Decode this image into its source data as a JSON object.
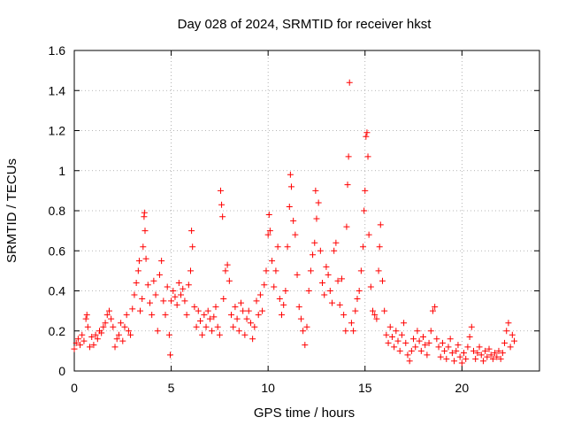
{
  "chart_data": {
    "type": "scatter",
    "title": "Day 028 of 2024, SRMTID for receiver hkst",
    "xlabel": "GPS time / hours",
    "ylabel": "SRMTID / TECUs",
    "xlim": [
      0,
      24
    ],
    "ylim": [
      0,
      1.6
    ],
    "x_ticks": [
      0,
      5,
      10,
      15,
      20
    ],
    "x_tick_labels": [
      "0",
      "5",
      "10",
      "15",
      "20"
    ],
    "y_ticks": [
      0,
      0.2,
      0.4,
      0.6,
      0.8,
      1,
      1.2,
      1.4,
      1.6
    ],
    "y_tick_labels": [
      "0",
      "0.2",
      "0.4",
      "0.6",
      "0.8",
      "1",
      "1.2",
      "1.4",
      "1.6"
    ],
    "grid": true,
    "marker": "plus",
    "color": "#ff0000",
    "series": [
      {
        "name": "SRMTID",
        "points": [
          [
            0.0,
            0.11
          ],
          [
            0.1,
            0.14
          ],
          [
            0.2,
            0.16
          ],
          [
            0.3,
            0.13
          ],
          [
            0.4,
            0.18
          ],
          [
            0.5,
            0.15
          ],
          [
            0.6,
            0.26
          ],
          [
            0.65,
            0.28
          ],
          [
            0.7,
            0.22
          ],
          [
            0.8,
            0.12
          ],
          [
            0.9,
            0.17
          ],
          [
            1.0,
            0.13
          ],
          [
            1.1,
            0.18
          ],
          [
            1.2,
            0.16
          ],
          [
            1.3,
            0.2
          ],
          [
            1.4,
            0.19
          ],
          [
            1.5,
            0.22
          ],
          [
            1.6,
            0.24
          ],
          [
            1.7,
            0.28
          ],
          [
            1.8,
            0.3
          ],
          [
            1.9,
            0.26
          ],
          [
            2.0,
            0.22
          ],
          [
            2.1,
            0.12
          ],
          [
            2.2,
            0.16
          ],
          [
            2.3,
            0.18
          ],
          [
            2.4,
            0.24
          ],
          [
            2.5,
            0.15
          ],
          [
            2.6,
            0.22
          ],
          [
            2.7,
            0.28
          ],
          [
            2.8,
            0.2
          ],
          [
            2.9,
            0.18
          ],
          [
            3.0,
            0.31
          ],
          [
            3.1,
            0.38
          ],
          [
            3.2,
            0.44
          ],
          [
            3.3,
            0.5
          ],
          [
            3.35,
            0.55
          ],
          [
            3.4,
            0.3
          ],
          [
            3.5,
            0.36
          ],
          [
            3.55,
            0.62
          ],
          [
            3.6,
            0.77
          ],
          [
            3.62,
            0.79
          ],
          [
            3.65,
            0.7
          ],
          [
            3.7,
            0.56
          ],
          [
            3.8,
            0.43
          ],
          [
            3.9,
            0.34
          ],
          [
            4.0,
            0.28
          ],
          [
            4.1,
            0.45
          ],
          [
            4.2,
            0.38
          ],
          [
            4.3,
            0.2
          ],
          [
            4.4,
            0.48
          ],
          [
            4.5,
            0.55
          ],
          [
            4.6,
            0.35
          ],
          [
            4.7,
            0.28
          ],
          [
            4.8,
            0.42
          ],
          [
            4.9,
            0.18
          ],
          [
            4.95,
            0.08
          ],
          [
            5.0,
            0.35
          ],
          [
            5.1,
            0.4
          ],
          [
            5.2,
            0.37
          ],
          [
            5.3,
            0.33
          ],
          [
            5.4,
            0.44
          ],
          [
            5.5,
            0.38
          ],
          [
            5.6,
            0.41
          ],
          [
            5.7,
            0.35
          ],
          [
            5.8,
            0.28
          ],
          [
            5.9,
            0.43
          ],
          [
            6.0,
            0.5
          ],
          [
            6.05,
            0.7
          ],
          [
            6.1,
            0.62
          ],
          [
            6.2,
            0.32
          ],
          [
            6.3,
            0.22
          ],
          [
            6.4,
            0.3
          ],
          [
            6.5,
            0.25
          ],
          [
            6.6,
            0.18
          ],
          [
            6.7,
            0.28
          ],
          [
            6.8,
            0.22
          ],
          [
            6.9,
            0.3
          ],
          [
            7.0,
            0.26
          ],
          [
            7.1,
            0.2
          ],
          [
            7.2,
            0.27
          ],
          [
            7.3,
            0.32
          ],
          [
            7.4,
            0.22
          ],
          [
            7.5,
            0.18
          ],
          [
            7.55,
            0.9
          ],
          [
            7.6,
            0.83
          ],
          [
            7.65,
            0.77
          ],
          [
            7.7,
            0.36
          ],
          [
            7.8,
            0.5
          ],
          [
            7.9,
            0.53
          ],
          [
            8.0,
            0.45
          ],
          [
            8.1,
            0.28
          ],
          [
            8.2,
            0.22
          ],
          [
            8.3,
            0.32
          ],
          [
            8.4,
            0.26
          ],
          [
            8.5,
            0.2
          ],
          [
            8.6,
            0.34
          ],
          [
            8.7,
            0.3
          ],
          [
            8.8,
            0.18
          ],
          [
            8.9,
            0.26
          ],
          [
            9.0,
            0.3
          ],
          [
            9.1,
            0.24
          ],
          [
            9.2,
            0.16
          ],
          [
            9.3,
            0.22
          ],
          [
            9.4,
            0.35
          ],
          [
            9.5,
            0.28
          ],
          [
            9.6,
            0.38
          ],
          [
            9.7,
            0.3
          ],
          [
            9.8,
            0.43
          ],
          [
            9.9,
            0.5
          ],
          [
            10.0,
            0.68
          ],
          [
            10.05,
            0.78
          ],
          [
            10.1,
            0.7
          ],
          [
            10.2,
            0.55
          ],
          [
            10.3,
            0.42
          ],
          [
            10.4,
            0.5
          ],
          [
            10.5,
            0.62
          ],
          [
            10.6,
            0.36
          ],
          [
            10.7,
            0.28
          ],
          [
            10.8,
            0.33
          ],
          [
            10.9,
            0.4
          ],
          [
            11.0,
            0.62
          ],
          [
            11.1,
            0.82
          ],
          [
            11.15,
            0.98
          ],
          [
            11.2,
            0.92
          ],
          [
            11.3,
            0.75
          ],
          [
            11.4,
            0.68
          ],
          [
            11.5,
            0.48
          ],
          [
            11.6,
            0.32
          ],
          [
            11.7,
            0.26
          ],
          [
            11.8,
            0.2
          ],
          [
            11.9,
            0.13
          ],
          [
            12.0,
            0.22
          ],
          [
            12.1,
            0.4
          ],
          [
            12.2,
            0.5
          ],
          [
            12.3,
            0.58
          ],
          [
            12.4,
            0.64
          ],
          [
            12.45,
            0.9
          ],
          [
            12.5,
            0.76
          ],
          [
            12.6,
            0.84
          ],
          [
            12.7,
            0.6
          ],
          [
            12.8,
            0.44
          ],
          [
            12.9,
            0.38
          ],
          [
            13.0,
            0.52
          ],
          [
            13.1,
            0.48
          ],
          [
            13.2,
            0.4
          ],
          [
            13.3,
            0.34
          ],
          [
            13.4,
            0.6
          ],
          [
            13.5,
            0.64
          ],
          [
            13.6,
            0.45
          ],
          [
            13.7,
            0.33
          ],
          [
            13.8,
            0.46
          ],
          [
            13.9,
            0.28
          ],
          [
            14.0,
            0.2
          ],
          [
            14.05,
            0.72
          ],
          [
            14.1,
            0.93
          ],
          [
            14.15,
            1.07
          ],
          [
            14.2,
            1.44
          ],
          [
            14.3,
            0.24
          ],
          [
            14.4,
            0.2
          ],
          [
            14.5,
            0.3
          ],
          [
            14.6,
            0.36
          ],
          [
            14.7,
            0.4
          ],
          [
            14.8,
            0.5
          ],
          [
            14.9,
            0.62
          ],
          [
            14.95,
            0.8
          ],
          [
            15.0,
            0.9
          ],
          [
            15.05,
            1.17
          ],
          [
            15.1,
            1.19
          ],
          [
            15.15,
            1.07
          ],
          [
            15.2,
            0.68
          ],
          [
            15.3,
            0.42
          ],
          [
            15.4,
            0.3
          ],
          [
            15.5,
            0.28
          ],
          [
            15.6,
            0.26
          ],
          [
            15.7,
            0.5
          ],
          [
            15.75,
            0.62
          ],
          [
            15.8,
            0.73
          ],
          [
            15.9,
            0.45
          ],
          [
            16.0,
            0.3
          ],
          [
            16.1,
            0.18
          ],
          [
            16.2,
            0.14
          ],
          [
            16.3,
            0.22
          ],
          [
            16.4,
            0.17
          ],
          [
            16.5,
            0.12
          ],
          [
            16.6,
            0.2
          ],
          [
            16.7,
            0.15
          ],
          [
            16.8,
            0.1
          ],
          [
            16.9,
            0.18
          ],
          [
            17.0,
            0.24
          ],
          [
            17.1,
            0.14
          ],
          [
            17.2,
            0.08
          ],
          [
            17.3,
            0.05
          ],
          [
            17.4,
            0.1
          ],
          [
            17.5,
            0.16
          ],
          [
            17.6,
            0.12
          ],
          [
            17.7,
            0.2
          ],
          [
            17.8,
            0.15
          ],
          [
            17.9,
            0.1
          ],
          [
            18.0,
            0.17
          ],
          [
            18.1,
            0.13
          ],
          [
            18.2,
            0.08
          ],
          [
            18.3,
            0.14
          ],
          [
            18.4,
            0.2
          ],
          [
            18.5,
            0.3
          ],
          [
            18.6,
            0.32
          ],
          [
            18.7,
            0.16
          ],
          [
            18.8,
            0.12
          ],
          [
            18.9,
            0.07
          ],
          [
            19.0,
            0.14
          ],
          [
            19.1,
            0.1
          ],
          [
            19.2,
            0.06
          ],
          [
            19.3,
            0.12
          ],
          [
            19.4,
            0.16
          ],
          [
            19.5,
            0.09
          ],
          [
            19.6,
            0.05
          ],
          [
            19.7,
            0.1
          ],
          [
            19.8,
            0.13
          ],
          [
            19.9,
            0.07
          ],
          [
            20.0,
            0.04
          ],
          [
            20.1,
            0.09
          ],
          [
            20.2,
            0.06
          ],
          [
            20.3,
            0.12
          ],
          [
            20.4,
            0.17
          ],
          [
            20.5,
            0.22
          ],
          [
            20.6,
            0.1
          ],
          [
            20.7,
            0.06
          ],
          [
            20.8,
            0.09
          ],
          [
            20.9,
            0.12
          ],
          [
            21.0,
            0.08
          ],
          [
            21.1,
            0.05
          ],
          [
            21.2,
            0.1
          ],
          [
            21.3,
            0.07
          ],
          [
            21.4,
            0.11
          ],
          [
            21.5,
            0.08
          ],
          [
            21.6,
            0.06
          ],
          [
            21.7,
            0.09
          ],
          [
            21.8,
            0.07
          ],
          [
            21.9,
            0.1
          ],
          [
            22.0,
            0.06
          ],
          [
            22.1,
            0.09
          ],
          [
            22.2,
            0.14
          ],
          [
            22.3,
            0.2
          ],
          [
            22.4,
            0.24
          ],
          [
            22.5,
            0.12
          ],
          [
            22.6,
            0.18
          ],
          [
            22.7,
            0.15
          ]
        ]
      }
    ]
  }
}
